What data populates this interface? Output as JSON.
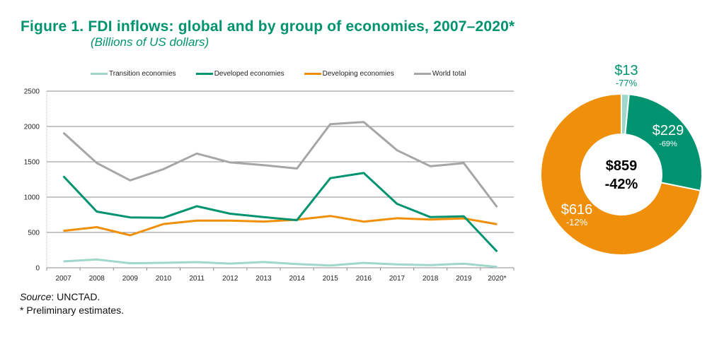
{
  "title": "Figure 1. FDI inflows: global and by group of economies, 2007–2020*",
  "subtitle": "(Billions of US dollars)",
  "source_label": "Source",
  "source_text": ": UNCTAD.",
  "footnote": "* Preliminary estimates.",
  "chart_data": [
    {
      "type": "line",
      "title": "FDI inflows: global and by group of economies, 2007–2020*",
      "xlabel": "",
      "ylabel": "Billions of US dollars",
      "x": [
        "2007",
        "2008",
        "2009",
        "2010",
        "2011",
        "2012",
        "2013",
        "2014",
        "2015",
        "2016",
        "2017",
        "2018",
        "2019",
        "2020*"
      ],
      "ylim": [
        0,
        2500
      ],
      "yticks": [
        0,
        500,
        1000,
        1500,
        2000,
        2500
      ],
      "grid": true,
      "legend_position": "top",
      "series": [
        {
          "name": "Transition economies",
          "color": "#9fd8cb",
          "values": [
            90,
            117,
            64,
            70,
            80,
            59,
            81,
            52,
            33,
            69,
            48,
            38,
            58,
            13
          ]
        },
        {
          "name": "Developed economies",
          "color": "#00936f",
          "values": [
            1296,
            795,
            713,
            708,
            871,
            765,
            717,
            674,
            1268,
            1342,
            905,
            717,
            729,
            229
          ]
        },
        {
          "name": "Developing economies",
          "color": "#f0900a",
          "values": [
            522,
            575,
            460,
            619,
            667,
            668,
            654,
            680,
            733,
            653,
            701,
            682,
            699,
            616
          ]
        },
        {
          "name": "World total",
          "color": "#a6a6a6",
          "values": [
            1911,
            1483,
            1237,
            1396,
            1617,
            1491,
            1453,
            1405,
            2033,
            2063,
            1663,
            1437,
            1481,
            859
          ]
        }
      ]
    },
    {
      "type": "pie",
      "title": "2020* FDI inflows by group",
      "center_label": {
        "value": "$859",
        "change": "-42%"
      },
      "slices": [
        {
          "name": "Transition economies",
          "value": 13,
          "label": "$13",
          "change": "-77%",
          "color": "#9fd8cb",
          "label_color": "#00936f"
        },
        {
          "name": "Developed economies",
          "value": 229,
          "label": "$229",
          "change": "-69%",
          "color": "#00936f",
          "label_color": "#ffffff"
        },
        {
          "name": "Developing economies",
          "value": 616,
          "label": "$616",
          "change": "-12%",
          "color": "#f0900a",
          "label_color": "#ffffff"
        }
      ]
    }
  ]
}
